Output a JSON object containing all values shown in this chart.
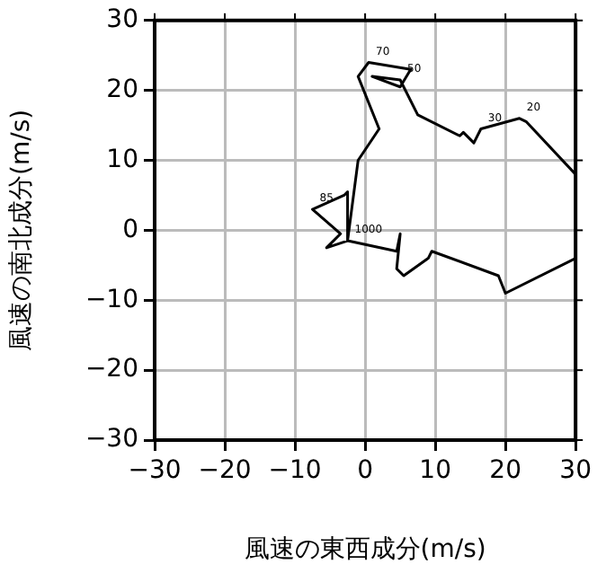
{
  "chart_data": {
    "type": "line",
    "xlabel": "風速の東西成分(m/s)",
    "ylabel": "風速の南北成分(m/s)",
    "x": [
      30,
      20,
      19,
      9.5,
      9,
      5.5,
      4.5,
      5,
      4.5,
      -2.5,
      -5.5,
      -3.5,
      -7.5,
      -3,
      -2.5,
      -2.5,
      -1,
      2,
      -1,
      0.5,
      6.5,
      5,
      1,
      5,
      7.5,
      13.5,
      14,
      15.5,
      16.5,
      22,
      23,
      30
    ],
    "values": [
      -4,
      -9,
      -6.5,
      -3,
      -4,
      -6.5,
      -5.5,
      -0.5,
      -3,
      -1.5,
      -2.5,
      -0.5,
      3,
      5,
      5.5,
      -1.5,
      10,
      14.5,
      22,
      24,
      23,
      20.5,
      22,
      21.5,
      16.5,
      13.5,
      14,
      12.5,
      14.5,
      16,
      15.5,
      8
    ],
    "color": "#000000",
    "marker": "none",
    "line_style": "solid",
    "xlim": [
      -30,
      30
    ],
    "ylim": [
      -30,
      30
    ],
    "xticks": [
      -30,
      -20,
      -10,
      0,
      10,
      20,
      30
    ],
    "yticks": [
      -30,
      -20,
      -10,
      0,
      10,
      20,
      30
    ],
    "grid": true,
    "legend": false,
    "annotations": [
      {
        "text": "70",
        "x": 0.5,
        "y": 24
      },
      {
        "text": "50",
        "x": 5,
        "y": 21.5
      },
      {
        "text": "30",
        "x": 16.5,
        "y": 14.5
      },
      {
        "text": "20",
        "x": 22,
        "y": 16
      },
      {
        "text": "85",
        "x": -7.5,
        "y": 3
      },
      {
        "text": "1000",
        "x": -2.5,
        "y": -1.5
      }
    ]
  }
}
